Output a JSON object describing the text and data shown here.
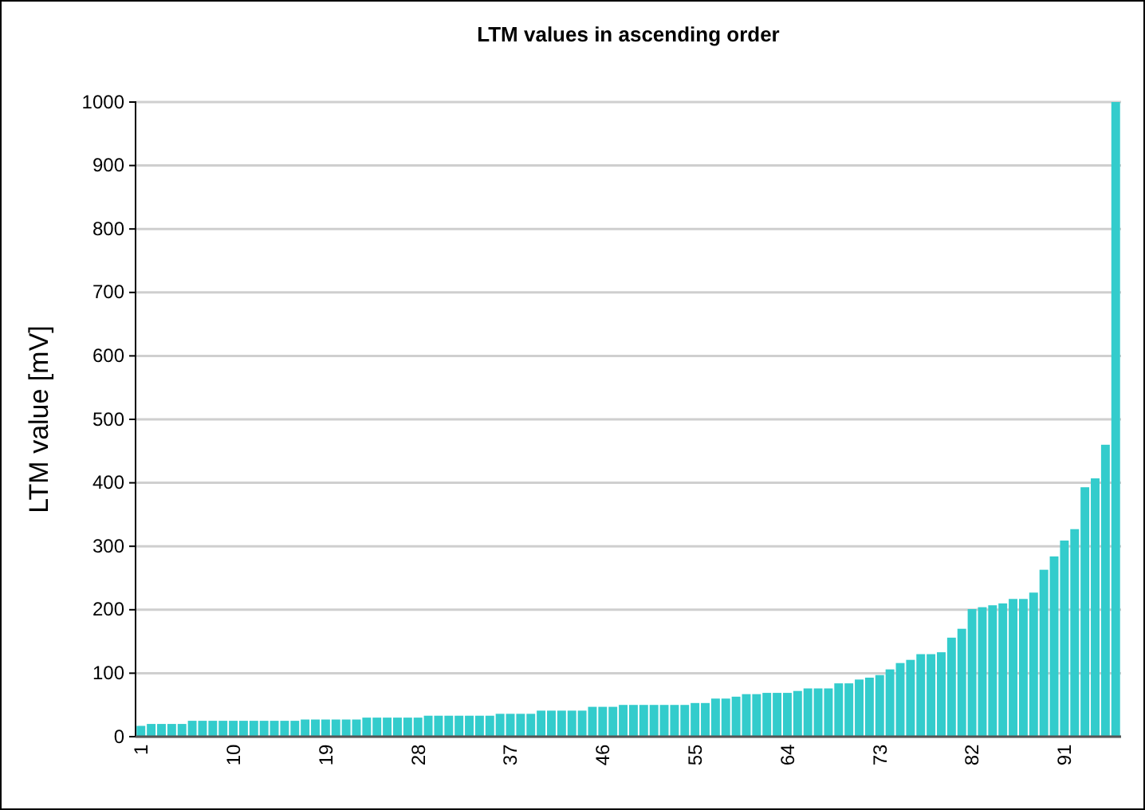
{
  "chart_data": {
    "type": "bar",
    "title": "LTM values in ascending order",
    "ylabel": "LTM value [mV]",
    "categories": [
      "1",
      null,
      null,
      null,
      null,
      null,
      null,
      null,
      null,
      "10",
      null,
      null,
      null,
      null,
      null,
      null,
      null,
      null,
      "19",
      null,
      null,
      null,
      null,
      null,
      null,
      null,
      null,
      "28",
      null,
      null,
      null,
      null,
      null,
      null,
      null,
      null,
      "37",
      null,
      null,
      null,
      null,
      null,
      null,
      null,
      null,
      "46",
      null,
      null,
      null,
      null,
      null,
      null,
      null,
      null,
      "55",
      null,
      null,
      null,
      null,
      null,
      null,
      null,
      null,
      "64",
      null,
      null,
      null,
      null,
      null,
      null,
      null,
      null,
      "73",
      null,
      null,
      null,
      null,
      null,
      null,
      null,
      null,
      "82",
      null,
      null,
      null,
      null,
      null,
      null,
      null,
      null,
      "91",
      null,
      null,
      null,
      null,
      null
    ],
    "values": [
      17,
      20,
      20,
      20,
      20,
      25,
      25,
      25,
      25,
      25,
      25,
      25,
      25,
      25,
      25,
      25,
      27,
      27,
      27,
      27,
      27,
      27,
      30,
      30,
      30,
      30,
      30,
      30,
      33,
      33,
      33,
      33,
      33,
      33,
      33,
      36,
      36,
      36,
      36,
      41,
      41,
      41,
      41,
      41,
      47,
      47,
      47,
      50,
      50,
      50,
      50,
      50,
      50,
      50,
      53,
      53,
      60,
      60,
      63,
      67,
      67,
      69,
      69,
      69,
      72,
      76,
      76,
      76,
      84,
      84,
      90,
      93,
      97,
      106,
      116,
      121,
      130,
      130,
      133,
      156,
      170,
      201,
      204,
      207,
      210,
      217,
      217,
      227,
      263,
      284,
      309,
      327,
      393,
      407,
      460,
      1000
    ],
    "color": "#33cccc",
    "ylim": [
      0,
      1000
    ],
    "yticks": [
      0,
      100,
      200,
      300,
      400,
      500,
      600,
      700,
      800,
      900,
      1000
    ],
    "grid": "y"
  }
}
